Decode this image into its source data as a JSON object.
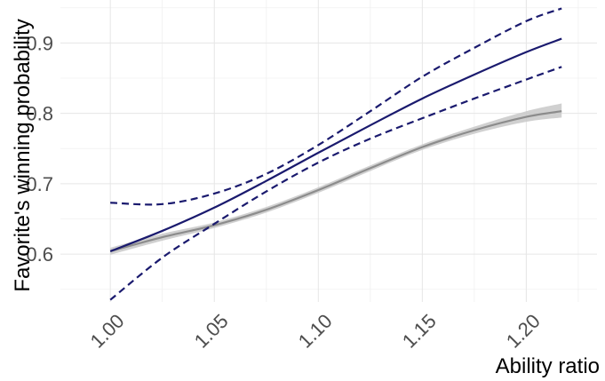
{
  "chart_data": {
    "type": "line",
    "title": "",
    "xlabel": "Ability ratio",
    "ylabel": "Favorite's winning probability",
    "xlim": [
      0.976,
      1.234
    ],
    "ylim": [
      0.532,
      0.961
    ],
    "x_ticks": [
      1.0,
      1.05,
      1.1,
      1.15,
      1.2
    ],
    "x_tick_labels": [
      "1.00",
      "1.05",
      "1.10",
      "1.15",
      "1.20"
    ],
    "y_ticks": [
      0.6,
      0.7,
      0.8,
      0.9
    ],
    "y_tick_labels": [
      "0.6",
      "0.7",
      "0.8",
      "0.9"
    ],
    "grid": true,
    "legend": "none",
    "colors": {
      "model": "#1a1a6e",
      "reference": "#8c8c8c",
      "reference_band": "#c8c8c8"
    },
    "x": [
      1.0,
      1.025,
      1.05,
      1.075,
      1.1,
      1.125,
      1.15,
      1.175,
      1.2,
      1.217
    ],
    "series": [
      {
        "style": "solid",
        "role": "model",
        "values": [
          0.604,
          0.633,
          0.666,
          0.704,
          0.744,
          0.783,
          0.821,
          0.855,
          0.887,
          0.906
        ]
      },
      {
        "style": "dashed",
        "role": "model-upper",
        "values": [
          0.673,
          0.671,
          0.686,
          0.714,
          0.755,
          0.803,
          0.852,
          0.893,
          0.931,
          0.949
        ]
      },
      {
        "style": "dashed",
        "role": "model-lower",
        "values": [
          0.535,
          0.595,
          0.643,
          0.689,
          0.73,
          0.764,
          0.793,
          0.821,
          0.848,
          0.866
        ]
      },
      {
        "style": "solid",
        "role": "reference",
        "values": [
          0.604,
          0.624,
          0.641,
          0.663,
          0.691,
          0.722,
          0.752,
          0.776,
          0.795,
          0.803
        ],
        "band_upper": [
          0.609,
          0.629,
          0.645,
          0.667,
          0.695,
          0.726,
          0.756,
          0.781,
          0.803,
          0.814
        ],
        "band_lower": [
          0.599,
          0.619,
          0.637,
          0.659,
          0.687,
          0.718,
          0.748,
          0.771,
          0.788,
          0.794
        ]
      }
    ]
  }
}
